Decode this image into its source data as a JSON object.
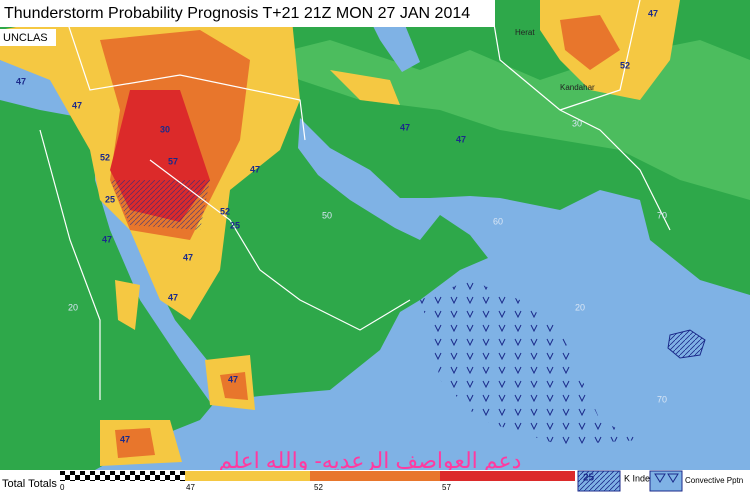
{
  "header": {
    "title": "Thunderstorm Probability Prognosis T+21 21Z MON 27 JAN 2014",
    "classification": "UNCLAS"
  },
  "map": {
    "cities": [
      "Herat",
      "Kandahar"
    ],
    "grid_labels": [
      "50",
      "60",
      "70",
      "20",
      "30",
      "20",
      "70"
    ],
    "contour_labels": [
      "47",
      "47",
      "52",
      "57",
      "30",
      "25",
      "47",
      "47",
      "47",
      "52",
      "47",
      "47",
      "47",
      "47",
      "52",
      "25",
      "47",
      "47"
    ]
  },
  "legend": {
    "title": "Total Totals",
    "ticks": [
      "0",
      "47",
      "52",
      "57"
    ],
    "k_index_value": "25",
    "k_index": "K Index",
    "convective": "Convective Pptn"
  },
  "watermark": "دعم العواصف الرعديه- والله اعلم"
}
